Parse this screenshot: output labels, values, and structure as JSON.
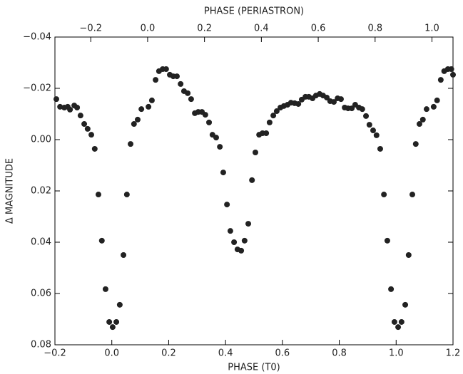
{
  "chart_data": {
    "type": "scatter",
    "xlabel": "PHASE (T0)",
    "x2label": "PHASE (PERIASTRON)",
    "ylabel": "Δ MAGNITUDE",
    "xlim": [
      -0.2,
      1.2
    ],
    "xticks": [
      {
        "value": -0.2,
        "label": "−0.2"
      },
      {
        "value": 0,
        "label": "0.0"
      },
      0.2,
      0.4,
      0.6,
      0.8,
      {
        "value": 1,
        "label": "1.0"
      },
      1.2
    ],
    "x2lim": [
      -0.326,
      1.074
    ],
    "x2ticks": [
      {
        "value": -0.2,
        "label": "−0.2"
      },
      {
        "value": 0,
        "label": "0.0"
      },
      0.2,
      0.4,
      0.6,
      0.8,
      {
        "value": 1,
        "label": "1.0"
      }
    ],
    "ylim": [
      -0.04,
      0.08
    ],
    "y_inverted": true,
    "yticks": [
      {
        "value": -0.04,
        "label": "−0.04"
      },
      {
        "value": -0.02,
        "label": "−0.02"
      },
      {
        "value": 0,
        "label": "0.00"
      },
      {
        "value": 0.02,
        "label": "0.02"
      },
      {
        "value": 0.04,
        "label": "0.04"
      },
      {
        "value": 0.06,
        "label": "0.06"
      },
      {
        "value": 0.08,
        "label": "0.08"
      }
    ],
    "grid": false,
    "series": [
      {
        "color": "#222222",
        "x": [
          -0.195,
          -0.182,
          -0.167,
          -0.155,
          -0.147,
          -0.132,
          -0.122,
          -0.11,
          -0.097,
          -0.085,
          -0.072,
          -0.06,
          -0.047,
          -0.035,
          -0.022,
          -0.009,
          0.003,
          0.016,
          0.028,
          0.041,
          0.053,
          0.066,
          0.078,
          0.091,
          0.104,
          0.129,
          0.141,
          0.154,
          0.166,
          0.179,
          0.191,
          0.204,
          0.216,
          0.229,
          0.242,
          0.254,
          0.267,
          0.279,
          0.292,
          0.304,
          0.317,
          0.329,
          0.342,
          0.354,
          0.367,
          0.38,
          0.392,
          0.405,
          0.417,
          0.43,
          0.442,
          0.455,
          0.467,
          0.48,
          0.493,
          0.505,
          0.518,
          0.53,
          0.543,
          0.555,
          0.568,
          0.58,
          0.593,
          0.605,
          0.618,
          0.63,
          0.643,
          0.656,
          0.668,
          0.681,
          0.693,
          0.706,
          0.718,
          0.731,
          0.743,
          0.756,
          0.768,
          0.781,
          0.794,
          0.806,
          0.819,
          0.831,
          0.844,
          0.856,
          0.869,
          0.881,
          0.894,
          0.906,
          0.919,
          0.931,
          0.944,
          0.957,
          0.969,
          0.982,
          0.994,
          1.007,
          1.019,
          1.032,
          1.044,
          1.057,
          1.069,
          1.082,
          1.094,
          1.107,
          1.132,
          1.144,
          1.157,
          1.169,
          1.182,
          1.194,
          1.2
        ],
        "values": [
          -0.0158,
          -0.0128,
          -0.0125,
          -0.0128,
          -0.0117,
          -0.0133,
          -0.0125,
          -0.0094,
          -0.0061,
          -0.0042,
          -0.0019,
          0.0036,
          0.0214,
          0.0394,
          0.0583,
          0.0711,
          0.0731,
          0.0711,
          0.0644,
          0.045,
          0.0214,
          0.0017,
          -0.0061,
          -0.0078,
          -0.0119,
          -0.0128,
          -0.0153,
          -0.0233,
          -0.0267,
          -0.0275,
          -0.0275,
          -0.0253,
          -0.0247,
          -0.0247,
          -0.0217,
          -0.0189,
          -0.0181,
          -0.0158,
          -0.0103,
          -0.0108,
          -0.0108,
          -0.0097,
          -0.0067,
          -0.0019,
          -0.0008,
          0.0028,
          0.0128,
          0.0253,
          0.0356,
          0.04,
          0.0428,
          0.0433,
          0.0394,
          0.0328,
          0.0158,
          0.005,
          -0.0019,
          -0.0025,
          -0.0025,
          -0.0067,
          -0.0094,
          -0.0111,
          -0.0125,
          -0.0131,
          -0.0136,
          -0.0144,
          -0.0142,
          -0.0139,
          -0.0156,
          -0.0167,
          -0.0167,
          -0.0161,
          -0.0172,
          -0.0178,
          -0.0172,
          -0.0164,
          -0.015,
          -0.0147,
          -0.0161,
          -0.0158,
          -0.0125,
          -0.0122,
          -0.0122,
          -0.0136,
          -0.0125,
          -0.0119,
          -0.0092,
          -0.0058,
          -0.0036,
          -0.0017,
          0.0036,
          0.0214,
          0.0394,
          0.0583,
          0.0711,
          0.0731,
          0.0711,
          0.0644,
          0.045,
          0.0214,
          0.0017,
          -0.0061,
          -0.0078,
          -0.0119,
          -0.0128,
          -0.0153,
          -0.0233,
          -0.0267,
          -0.0275,
          -0.0275,
          -0.0253
        ]
      }
    ]
  }
}
